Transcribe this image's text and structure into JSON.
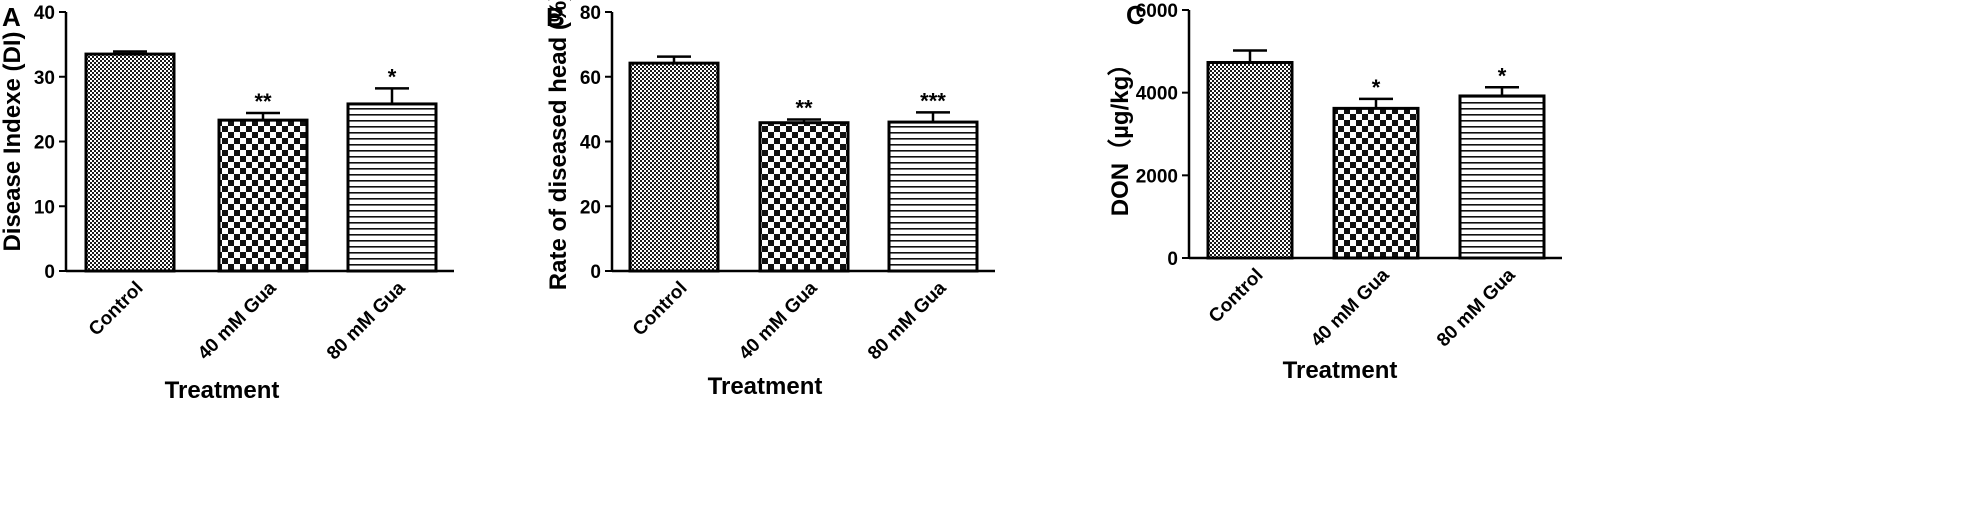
{
  "chart_data": [
    {
      "type": "bar",
      "panel_label": "A",
      "categories": [
        "Control",
        "40 mM Gua",
        "80 mM Gua"
      ],
      "values": [
        33.5,
        23.3,
        25.8
      ],
      "errors": [
        0.4,
        1.1,
        2.4
      ],
      "significance": [
        "",
        "**",
        "*"
      ],
      "patterns": [
        "fine-check",
        "checker",
        "h-stripes"
      ],
      "xlabel": "Treatment",
      "ylabel": "Disease Indexe (DI)",
      "ylim": [
        0,
        40
      ],
      "yticks": [
        "0",
        "10",
        "20",
        "30",
        "40"
      ]
    },
    {
      "type": "bar",
      "panel_label": "B",
      "categories": [
        "Control",
        "40 mM Gua",
        "80 mM Gua"
      ],
      "values": [
        64.2,
        45.8,
        46.0
      ],
      "errors": [
        2.0,
        1.0,
        3.0
      ],
      "significance": [
        "",
        "**",
        "***"
      ],
      "patterns": [
        "fine-check",
        "checker",
        "h-stripes"
      ],
      "xlabel": "Treatment",
      "ylabel": "Rate of diseased head (%)",
      "ylim": [
        0,
        80
      ],
      "yticks": [
        "0",
        "20",
        "40",
        "60",
        "80"
      ]
    },
    {
      "type": "bar",
      "panel_label": "C",
      "categories": [
        "Control",
        "40 mM Gua",
        "80 mM Gua"
      ],
      "values": [
        4730,
        3620,
        3920
      ],
      "errors": [
        290,
        230,
        210
      ],
      "significance": [
        "",
        "*",
        "*"
      ],
      "patterns": [
        "fine-check",
        "checker",
        "h-stripes"
      ],
      "xlabel": "Treatment",
      "ylabel": "DON（µg/kg）",
      "ylim": [
        0,
        6000
      ],
      "yticks": [
        "0",
        "2000",
        "4000",
        "6000"
      ]
    }
  ]
}
